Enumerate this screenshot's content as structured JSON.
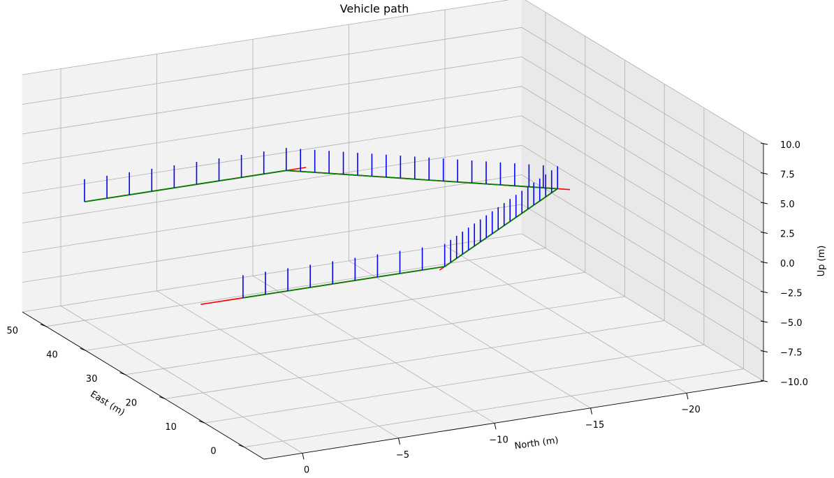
{
  "chart_data": {
    "type": "line3d",
    "title": "Vehicle path",
    "xlabel": "North (m)",
    "ylabel": "East (m)",
    "zlabel": "Up (m)",
    "xlim": [
      2,
      -24
    ],
    "ylim": [
      -5,
      56
    ],
    "zlim": [
      -10,
      10
    ],
    "x_ticks": [
      0,
      -5,
      -10,
      -15,
      -20
    ],
    "x_tick_labels": [
      "0",
      "−5",
      "−10",
      "−15",
      "−20"
    ],
    "y_ticks": [
      0,
      10,
      20,
      30,
      40,
      50
    ],
    "y_tick_labels": [
      "0",
      "10",
      "20",
      "30",
      "40",
      "50"
    ],
    "z_ticks": [
      -10,
      -7.5,
      -5,
      -2.5,
      0,
      2.5,
      5,
      7.5,
      10
    ],
    "z_tick_labels": [
      "−10.0",
      "−7.5",
      "−5.0",
      "−2.5",
      "0.0",
      "2.5",
      "5.0",
      "7.5",
      "10.0"
    ],
    "path": {
      "name": "vehicle path",
      "color": "#008000",
      "waypoints": [
        {
          "north": 0,
          "east": 50
        },
        {
          "north": -10.5,
          "east": 50
        },
        {
          "north": -20.5,
          "east": 30
        },
        {
          "north": -10.5,
          "east": 10
        },
        {
          "north": 0,
          "east": 10
        }
      ],
      "up": 0
    },
    "heading_arrow_color": "#ff0000",
    "up_arrow_color": "#0000ff"
  }
}
